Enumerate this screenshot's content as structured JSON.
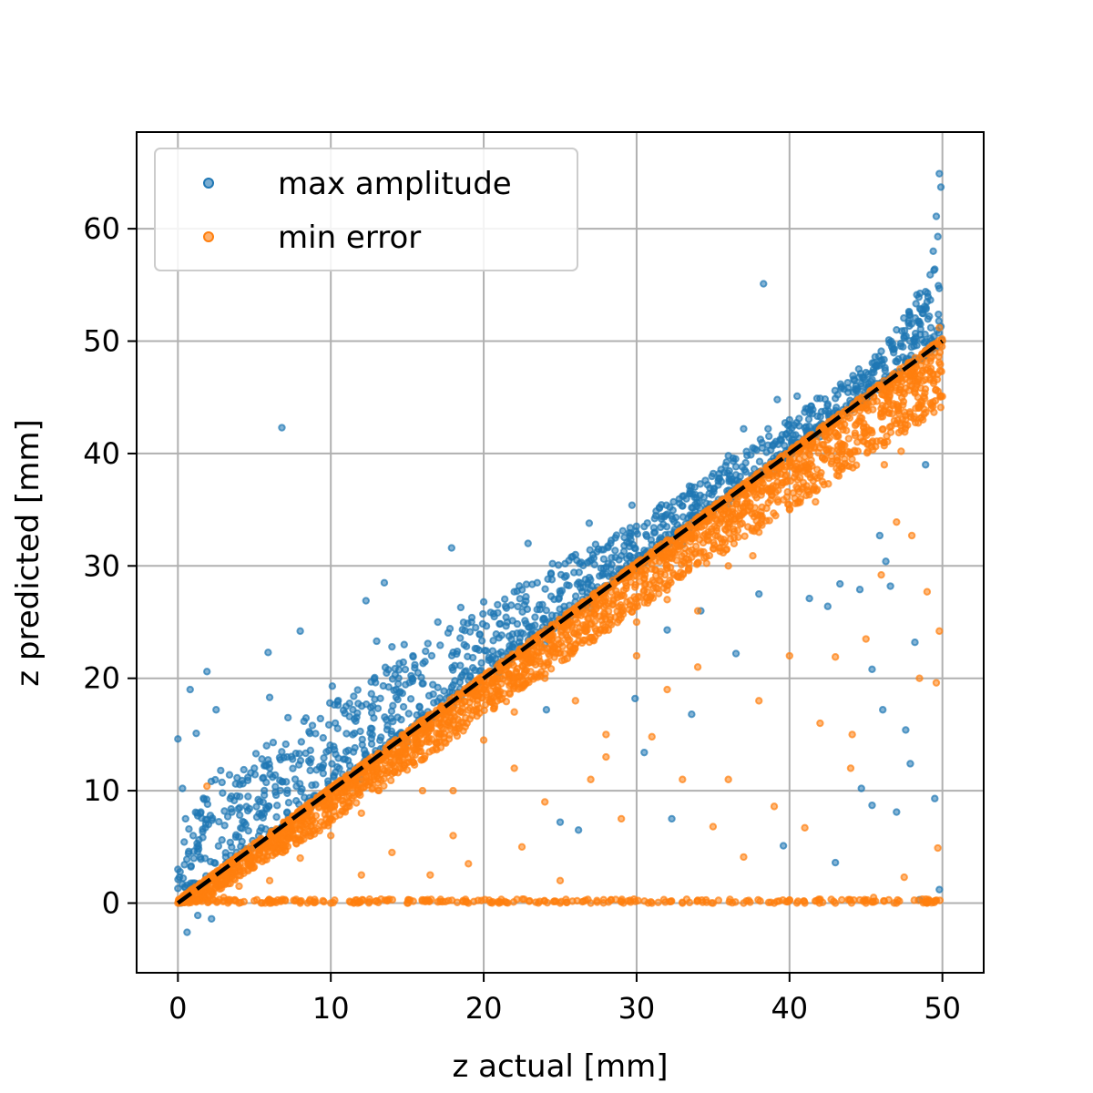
{
  "chart_data": {
    "type": "scatter",
    "xlabel": "z actual [mm]",
    "ylabel": "z predicted [mm]",
    "xlim": [
      -2.7,
      52.7
    ],
    "ylim": [
      -6.2,
      68.6
    ],
    "xticks": [
      0,
      10,
      20,
      30,
      40,
      50
    ],
    "yticks": [
      0,
      10,
      20,
      30,
      40,
      50,
      60
    ],
    "grid": true,
    "legend_position": "top-left",
    "reference_line": {
      "x": [
        0,
        50
      ],
      "y": [
        0,
        50
      ],
      "style": "dashed",
      "color": "#000000"
    },
    "series": [
      {
        "name": "max amplitude",
        "color": "#1f77b4",
        "points": [
          [
            0.0,
            14.6
          ],
          [
            0.8,
            19.0
          ],
          [
            1.9,
            20.6
          ],
          [
            1.2,
            15.1
          ],
          [
            2.5,
            17.2
          ],
          [
            0.3,
            10.2
          ],
          [
            0.5,
            7.5
          ],
          [
            1.0,
            6.0
          ],
          [
            1.5,
            8.1
          ],
          [
            2.0,
            7.0
          ],
          [
            2.8,
            11.8
          ],
          [
            3.5,
            9.5
          ],
          [
            4.2,
            10.9
          ],
          [
            5.0,
            12.0
          ],
          [
            5.8,
            14.0
          ],
          [
            6.0,
            18.3
          ],
          [
            5.9,
            22.3
          ],
          [
            6.8,
            42.3
          ],
          [
            7.2,
            16.5
          ],
          [
            8.0,
            24.2
          ],
          [
            8.8,
            15.8
          ],
          [
            9.5,
            14.7
          ],
          [
            10.1,
            19.3
          ],
          [
            11.0,
            17.5
          ],
          [
            11.5,
            18.4
          ],
          [
            12.3,
            26.9
          ],
          [
            13.0,
            23.3
          ],
          [
            13.5,
            28.5
          ],
          [
            14.0,
            22.8
          ],
          [
            14.8,
            23.0
          ],
          [
            15.5,
            21.2
          ],
          [
            16.2,
            22.4
          ],
          [
            17.0,
            25.0
          ],
          [
            17.9,
            31.6
          ],
          [
            18.5,
            26.3
          ],
          [
            19.2,
            25.0
          ],
          [
            20.0,
            26.8
          ],
          [
            21.0,
            23.6
          ],
          [
            22.0,
            27.7
          ],
          [
            22.9,
            32.0
          ],
          [
            23.5,
            28.5
          ],
          [
            24.5,
            30.2
          ],
          [
            25.3,
            29.0
          ],
          [
            26.0,
            31.0
          ],
          [
            26.9,
            33.8
          ],
          [
            27.5,
            31.5
          ],
          [
            28.3,
            32.0
          ],
          [
            29.0,
            30.9
          ],
          [
            29.7,
            35.4
          ],
          [
            30.5,
            33.5
          ],
          [
            31.2,
            33.0
          ],
          [
            32.0,
            34.6
          ],
          [
            33.0,
            36.2
          ],
          [
            33.8,
            37.0
          ],
          [
            34.5,
            37.6
          ],
          [
            35.4,
            38.2
          ],
          [
            36.0,
            39.8
          ],
          [
            36.5,
            38.1
          ],
          [
            37.0,
            42.2
          ],
          [
            37.6,
            40.5
          ],
          [
            38.3,
            55.1
          ],
          [
            38.6,
            42.2
          ],
          [
            39.2,
            44.8
          ],
          [
            40.0,
            43.0
          ],
          [
            40.5,
            45.1
          ],
          [
            41.2,
            44.0
          ],
          [
            41.8,
            44.9
          ],
          [
            42.5,
            44.4
          ],
          [
            43.0,
            44.9
          ],
          [
            43.5,
            43.9
          ],
          [
            44.2,
            46.6
          ],
          [
            45.0,
            47.2
          ],
          [
            45.6,
            48.6
          ],
          [
            46.0,
            49.1
          ],
          [
            46.5,
            50.1
          ],
          [
            47.0,
            51.0
          ],
          [
            47.5,
            50.4
          ],
          [
            47.8,
            51.8
          ],
          [
            48.2,
            50.2
          ],
          [
            48.6,
            52.8
          ],
          [
            48.9,
            54.4
          ],
          [
            49.2,
            55.9
          ],
          [
            49.4,
            58.0
          ],
          [
            49.6,
            61.1
          ],
          [
            49.8,
            64.9
          ],
          [
            49.9,
            63.7
          ],
          [
            49.7,
            59.3
          ],
          [
            49.5,
            56.4
          ],
          [
            49.0,
            53.5
          ],
          [
            49.9,
            51.3
          ],
          [
            0.6,
            -2.6
          ],
          [
            1.3,
            -1.1
          ],
          [
            2.2,
            -1.4
          ],
          [
            0.0,
            3.0
          ],
          [
            0.0,
            1.3
          ],
          [
            3.0,
            2.5
          ],
          [
            4.5,
            4.8
          ],
          [
            6.5,
            6.2
          ],
          [
            8.5,
            8.0
          ],
          [
            12.0,
            11.0
          ],
          [
            15.0,
            14.3
          ],
          [
            18.0,
            17.5
          ],
          [
            21.0,
            20.5
          ],
          [
            24.0,
            23.0
          ],
          [
            27.0,
            26.2
          ],
          [
            30.0,
            29.6
          ],
          [
            33.0,
            31.9
          ],
          [
            36.0,
            35.5
          ],
          [
            39.0,
            38.4
          ],
          [
            42.0,
            41.5
          ],
          [
            45.0,
            44.3
          ],
          [
            48.0,
            46.9
          ],
          [
            44.6,
            27.9
          ],
          [
            42.5,
            26.4
          ],
          [
            46.1,
            17.2
          ],
          [
            46.6,
            28.2
          ],
          [
            45.4,
            20.8
          ],
          [
            46.3,
            30.4
          ],
          [
            45.9,
            32.7
          ],
          [
            43.3,
            28.4
          ],
          [
            41.3,
            27.1
          ],
          [
            38.0,
            27.5
          ],
          [
            36.5,
            22.2
          ],
          [
            32.0,
            24.3
          ],
          [
            33.6,
            16.8
          ],
          [
            29.9,
            18.2
          ],
          [
            26.2,
            6.5
          ],
          [
            25.0,
            7.2
          ],
          [
            32.3,
            7.5
          ],
          [
            30.5,
            13.4
          ],
          [
            34.2,
            26.0
          ],
          [
            24.1,
            17.2
          ],
          [
            44.7,
            10.2
          ],
          [
            47.6,
            15.4
          ],
          [
            47.9,
            12.4
          ],
          [
            47.0,
            8.1
          ],
          [
            48.2,
            23.2
          ],
          [
            49.5,
            9.3
          ],
          [
            49.8,
            1.2
          ],
          [
            48.5,
            0.3
          ],
          [
            43.0,
            3.6
          ],
          [
            39.6,
            5.1
          ],
          [
            45.4,
            8.7
          ],
          [
            48.9,
            39.0
          ]
        ]
      },
      {
        "name": "min error",
        "color": "#ff7f0e",
        "points": [
          [
            0.0,
            0.0
          ],
          [
            0.5,
            0.3
          ],
          [
            1.0,
            1.0
          ],
          [
            1.5,
            1.2
          ],
          [
            2.0,
            0.1
          ],
          [
            3.0,
            0.5
          ],
          [
            4.0,
            0.0
          ],
          [
            5.0,
            0.2
          ],
          [
            6.0,
            0.0
          ],
          [
            7.0,
            0.3
          ],
          [
            8.0,
            0.0
          ],
          [
            9.0,
            0.1
          ],
          [
            10.0,
            0.0
          ],
          [
            11.5,
            0.0
          ],
          [
            13.0,
            0.2
          ],
          [
            15.0,
            0.0
          ],
          [
            17.0,
            0.1
          ],
          [
            19.0,
            0.0
          ],
          [
            21.0,
            0.0
          ],
          [
            23.0,
            0.2
          ],
          [
            25.0,
            0.0
          ],
          [
            27.0,
            0.0
          ],
          [
            29.0,
            0.1
          ],
          [
            31.0,
            0.0
          ],
          [
            33.0,
            0.0
          ],
          [
            35.0,
            0.0
          ],
          [
            37.0,
            0.0
          ],
          [
            39.0,
            0.0
          ],
          [
            41.0,
            0.0
          ],
          [
            43.0,
            0.0
          ],
          [
            45.0,
            0.0
          ],
          [
            47.0,
            0.0
          ],
          [
            49.0,
            0.0
          ],
          [
            1.9,
            10.4
          ],
          [
            3.5,
            3.5
          ],
          [
            5.5,
            5.2
          ],
          [
            7.5,
            7.3
          ],
          [
            9.5,
            9.1
          ],
          [
            11.5,
            11.3
          ],
          [
            13.5,
            13.0
          ],
          [
            15.5,
            15.2
          ],
          [
            17.5,
            17.1
          ],
          [
            19.5,
            19.2
          ],
          [
            21.5,
            21.0
          ],
          [
            23.5,
            23.2
          ],
          [
            25.5,
            25.0
          ],
          [
            27.5,
            27.1
          ],
          [
            29.5,
            29.0
          ],
          [
            31.5,
            31.0
          ],
          [
            33.5,
            33.1
          ],
          [
            35.5,
            35.0
          ],
          [
            37.5,
            37.0
          ],
          [
            39.5,
            39.1
          ],
          [
            41.5,
            41.0
          ],
          [
            43.5,
            43.0
          ],
          [
            45.5,
            45.0
          ],
          [
            47.5,
            47.0
          ],
          [
            49.5,
            49.0
          ],
          [
            50.0,
            50.0
          ],
          [
            49.8,
            51.2
          ],
          [
            12.0,
            8.0
          ],
          [
            14.0,
            4.5
          ],
          [
            16.0,
            10.0
          ],
          [
            18.0,
            6.0
          ],
          [
            20.0,
            14.5
          ],
          [
            22.0,
            12.0
          ],
          [
            24.0,
            9.0
          ],
          [
            26.0,
            18.0
          ],
          [
            28.0,
            15.0
          ],
          [
            30.0,
            22.0
          ],
          [
            32.0,
            19.0
          ],
          [
            34.0,
            26.0
          ],
          [
            36.0,
            30.0
          ],
          [
            38.0,
            33.0
          ],
          [
            40.0,
            35.0
          ],
          [
            42.0,
            38.0
          ],
          [
            44.0,
            40.0
          ],
          [
            46.0,
            44.0
          ],
          [
            48.0,
            46.0
          ],
          [
            16.5,
            2.5
          ],
          [
            19.0,
            3.5
          ],
          [
            22.5,
            5.0
          ],
          [
            25.0,
            2.0
          ],
          [
            27.0,
            11.0
          ],
          [
            29.0,
            7.5
          ],
          [
            31.0,
            14.8
          ],
          [
            33.0,
            11.0
          ],
          [
            35.0,
            6.8
          ],
          [
            37.0,
            4.1
          ],
          [
            39.0,
            8.6
          ],
          [
            41.0,
            6.7
          ],
          [
            43.0,
            21.9
          ],
          [
            44.1,
            15.0
          ],
          [
            45.0,
            23.5
          ],
          [
            46.0,
            29.2
          ],
          [
            47.0,
            33.9
          ],
          [
            48.0,
            32.7
          ],
          [
            49.0,
            27.7
          ],
          [
            49.8,
            24.2
          ],
          [
            49.6,
            19.6
          ],
          [
            49.7,
            4.9
          ],
          [
            48.5,
            20.0
          ],
          [
            47.5,
            2.3
          ],
          [
            45.5,
            0.5
          ],
          [
            44.0,
            12.0
          ],
          [
            42.0,
            16.0
          ],
          [
            40.0,
            22.0
          ],
          [
            38.0,
            18.0
          ],
          [
            36.0,
            11.0
          ],
          [
            34.0,
            21.0
          ],
          [
            32.0,
            27.0
          ],
          [
            30.0,
            25.0
          ],
          [
            28.0,
            13.0
          ],
          [
            26.0,
            23.0
          ],
          [
            24.0,
            20.0
          ],
          [
            22.0,
            17.0
          ],
          [
            20.0,
            19.0
          ],
          [
            18.0,
            10.0
          ],
          [
            16.0,
            15.5
          ],
          [
            14.0,
            11.5
          ],
          [
            12.0,
            2.5
          ],
          [
            10.0,
            6.0
          ],
          [
            8.0,
            4.0
          ],
          [
            6.0,
            2.0
          ],
          [
            4.0,
            1.5
          ],
          [
            2.0,
            0.8
          ],
          [
            35.4,
            31.6
          ],
          [
            37.6,
            30.9
          ],
          [
            39.6,
            37.4
          ],
          [
            41.7,
            35.7
          ],
          [
            43.6,
            39.5
          ],
          [
            44.8,
            41.1
          ],
          [
            46.2,
            39.0
          ],
          [
            47.3,
            40.2
          ],
          [
            48.4,
            45.0
          ],
          [
            49.2,
            47.3
          ],
          [
            49.9,
            45.1
          ],
          [
            48.8,
            43.5
          ]
        ]
      }
    ],
    "clouds": [
      {
        "series": "max amplitude",
        "count": 1400,
        "x_range": [
          0,
          50
        ],
        "upper_offset_by_x": [
          [
            0,
            9
          ],
          [
            10,
            8
          ],
          [
            20,
            6.5
          ],
          [
            30,
            4
          ],
          [
            40,
            3
          ],
          [
            46,
            3
          ],
          [
            50,
            8
          ]
        ],
        "lower_offset": 0.2
      },
      {
        "series": "min error",
        "count": 2600,
        "x_range": [
          0,
          50
        ],
        "upper_offset": 0.3,
        "lower_offset_by_x": [
          [
            0,
            1
          ],
          [
            10,
            3
          ],
          [
            20,
            3.5
          ],
          [
            30,
            4
          ],
          [
            40,
            5
          ],
          [
            50,
            6
          ]
        ]
      }
    ]
  }
}
